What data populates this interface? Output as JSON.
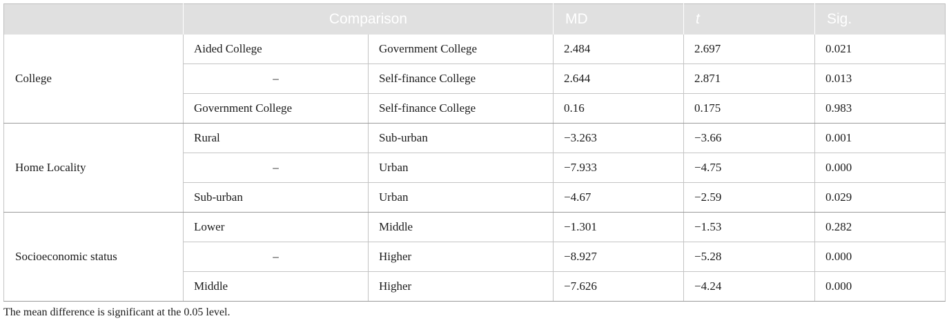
{
  "table": {
    "headers": {
      "comparison": "Comparison",
      "md": "MD",
      "t": "t",
      "sig": "Sig."
    },
    "groups": [
      {
        "label": "College",
        "rows": [
          {
            "a": "Aided College",
            "b": "Government College",
            "md": "2.484",
            "t": "2.697",
            "sig": "0.021"
          },
          {
            "a": "–",
            "b": "Self-finance College",
            "md": "2.644",
            "t": "2.871",
            "sig": "0.013"
          },
          {
            "a": "Government College",
            "b": "Self-finance College",
            "md": "0.16",
            "t": "0.175",
            "sig": "0.983"
          }
        ]
      },
      {
        "label": "Home Locality",
        "rows": [
          {
            "a": "Rural",
            "b": "Sub-urban",
            "md": "−3.263",
            "t": "−3.66",
            "sig": "0.001"
          },
          {
            "a": "–",
            "b": "Urban",
            "md": "−7.933",
            "t": "−4.75",
            "sig": "0.000"
          },
          {
            "a": "Sub-urban",
            "b": "Urban",
            "md": "−4.67",
            "t": "−2.59",
            "sig": "0.029"
          }
        ]
      },
      {
        "label": "Socioeconomic status",
        "rows": [
          {
            "a": "Lower",
            "b": "Middle",
            "md": "−1.301",
            "t": "−1.53",
            "sig": "0.282"
          },
          {
            "a": "–",
            "b": "Higher",
            "md": "−8.927",
            "t": "−5.28",
            "sig": "0.000"
          },
          {
            "a": "Middle",
            "b": "Higher",
            "md": "−7.626",
            "t": "−4.24",
            "sig": "0.000"
          }
        ]
      }
    ]
  },
  "footnote": "The mean difference is significant at the 0.05 level."
}
